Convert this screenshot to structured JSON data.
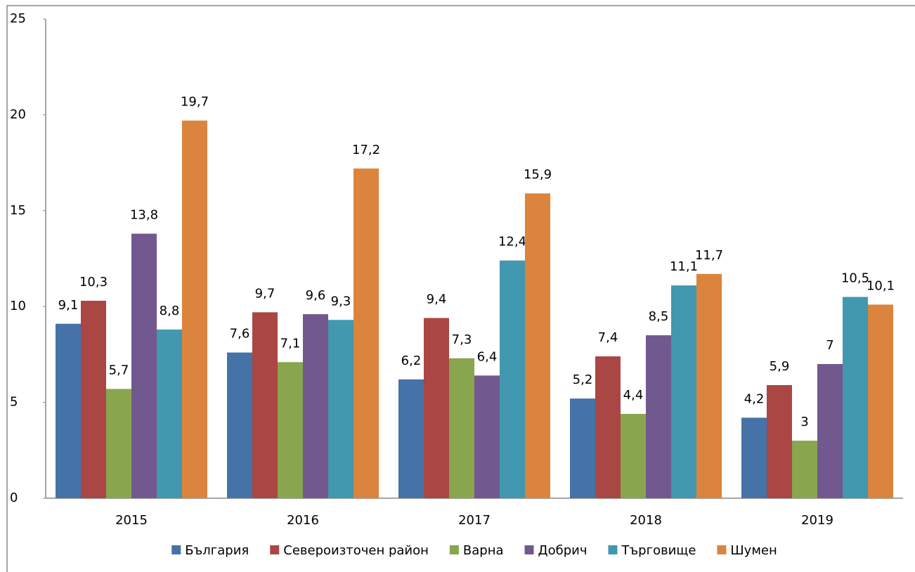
{
  "chart_data": {
    "type": "bar",
    "categories": [
      "2015",
      "2016",
      "2017",
      "2018",
      "2019"
    ],
    "series": [
      {
        "name": "България",
        "color": "#4572a7",
        "values": [
          9.1,
          7.6,
          6.2,
          5.2,
          4.2
        ],
        "value_labels": [
          "9,1",
          "7,6",
          "6,2",
          "5,2",
          "4,2"
        ]
      },
      {
        "name": "Североизточен район",
        "color": "#aa4643",
        "values": [
          10.3,
          9.7,
          9.4,
          7.4,
          5.9
        ],
        "value_labels": [
          "10,3",
          "9,7",
          "9,4",
          "7,4",
          "5,9"
        ]
      },
      {
        "name": "Варна",
        "color": "#89a54e",
        "values": [
          5.7,
          7.1,
          7.3,
          4.4,
          3
        ],
        "value_labels": [
          "5,7",
          "7,1",
          "7,3",
          "4,4",
          "3"
        ]
      },
      {
        "name": "Добрич",
        "color": "#71588f",
        "values": [
          13.8,
          9.6,
          6.4,
          8.5,
          7
        ],
        "value_labels": [
          "13,8",
          "9,6",
          "6,4",
          "8,5",
          "7"
        ]
      },
      {
        "name": "Търговище",
        "color": "#4198af",
        "values": [
          8.8,
          9.3,
          12.4,
          11.1,
          10.5
        ],
        "value_labels": [
          "8,8",
          "9,3",
          "12,4",
          "11,1",
          "10,5"
        ]
      },
      {
        "name": "Шумен",
        "color": "#db843d",
        "values": [
          19.7,
          17.2,
          15.9,
          11.7,
          10.1
        ],
        "value_labels": [
          "19,7",
          "17,2",
          "15,9",
          "11,7",
          "10,1"
        ]
      }
    ],
    "ylim": [
      0,
      25
    ],
    "yticks": [
      0,
      5,
      10,
      15,
      20,
      25
    ],
    "legend": "bottom"
  }
}
